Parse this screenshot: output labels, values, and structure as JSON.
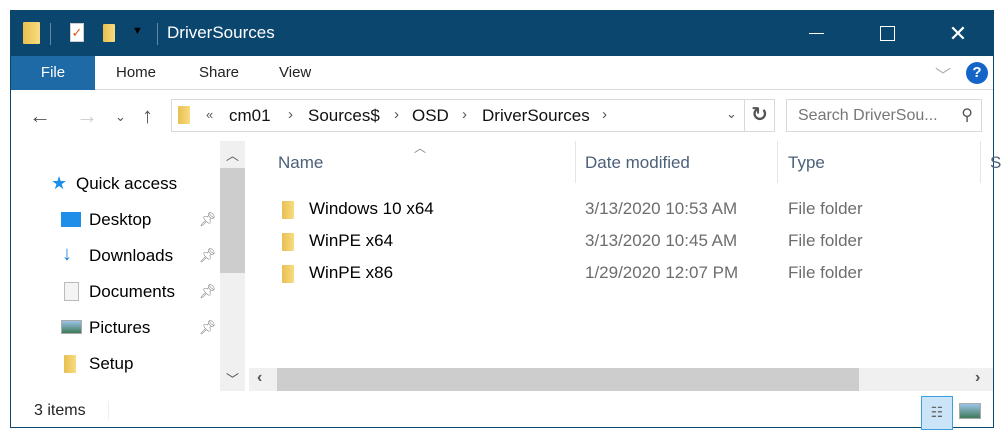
{
  "window": {
    "title": "DriverSources"
  },
  "ribbon": {
    "tabs": [
      "File",
      "Home",
      "Share",
      "View"
    ],
    "help": "?"
  },
  "address": {
    "overflow": "«",
    "crumbs": [
      "cm01",
      "Sources$",
      "OSD",
      "DriverSources"
    ]
  },
  "search": {
    "placeholder": "Search DriverSou..."
  },
  "sidebar": {
    "items": [
      {
        "label": "Quick access"
      },
      {
        "label": "Desktop",
        "pinned": true
      },
      {
        "label": "Downloads",
        "pinned": true
      },
      {
        "label": "Documents",
        "pinned": true
      },
      {
        "label": "Pictures",
        "pinned": true
      },
      {
        "label": "Setup",
        "pinned": false
      }
    ]
  },
  "columns": {
    "name": "Name",
    "date": "Date modified",
    "type": "Type",
    "size": "S"
  },
  "files": [
    {
      "name": "Windows 10 x64",
      "date": "3/13/2020 10:53 AM",
      "type": "File folder"
    },
    {
      "name": "WinPE x64",
      "date": "3/13/2020 10:45 AM",
      "type": "File folder"
    },
    {
      "name": "WinPE x86",
      "date": "1/29/2020 12:07 PM",
      "type": "File folder"
    }
  ],
  "status": {
    "count": "3 items",
    "view": "details"
  },
  "colors": {
    "titlebar": "#0b466e",
    "file_tab": "#1e6aa6"
  }
}
